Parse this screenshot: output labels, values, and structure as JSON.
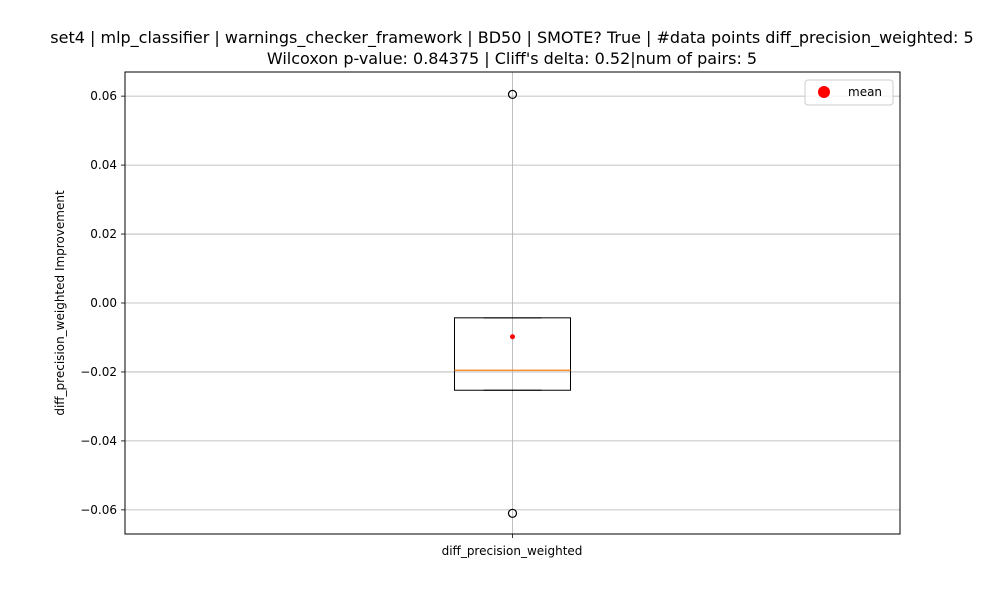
{
  "chart_data": {
    "type": "box",
    "title_lines": [
      "set4 | mlp_classifier | warnings_checker_framework | BD50 | SMOTE? True | #data points diff_precision_weighted: 5",
      "Wilcoxon p-value: 0.84375 | Cliff's delta: 0.52|num of pairs: 5"
    ],
    "xlabel": "",
    "ylabel": "diff_precision_weighted Improvement",
    "category": "diff_precision_weighted",
    "ylim": [
      -0.067,
      0.067
    ],
    "yticks": [
      -0.06,
      -0.04,
      -0.02,
      0.0,
      0.02,
      0.04,
      0.06
    ],
    "ytick_labels": [
      "−0.06",
      "−0.04",
      "−0.02",
      "0.00",
      "0.02",
      "0.04",
      "0.06"
    ],
    "grid": true,
    "box": {
      "q1": -0.0253,
      "median": -0.0195,
      "q3": -0.0043,
      "whisker_low": -0.0253,
      "whisker_high": -0.0043,
      "mean": -0.0098,
      "outliers": [
        0.0605,
        -0.061
      ]
    },
    "legend": {
      "position": "upper-right",
      "entries": [
        {
          "label": "mean",
          "color": "#ff0000"
        }
      ]
    },
    "colors": {
      "box": "#000000",
      "median": "#ff7f0e",
      "mean": "#ff0000",
      "grid": "#b0b0b0"
    }
  }
}
